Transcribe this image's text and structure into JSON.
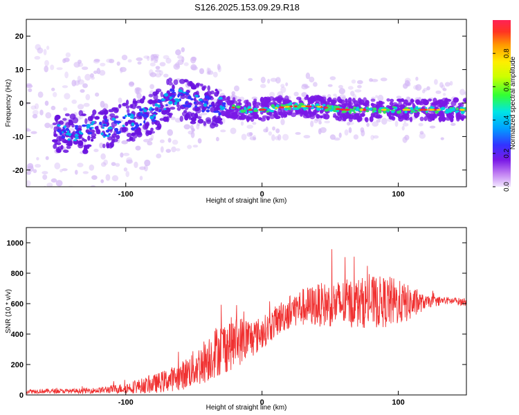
{
  "figure_title": "S126.2025.153.09.29.R18",
  "colors": {
    "spectrogram_purple": "#7a19e6",
    "spectrogram_light": "#d4b8f5",
    "snr_line": "#f03030",
    "frame": "#000000"
  },
  "chart_data": [
    {
      "type": "heatmap",
      "title": "",
      "xlabel": "Height of straight line (km)",
      "ylabel": "Frequency (Hz)",
      "xlim": [
        -173,
        150
      ],
      "ylim": [
        -25,
        25
      ],
      "x_ticks": [
        -100,
        0,
        100
      ],
      "y_ticks": [
        -20,
        -10,
        0,
        10,
        20
      ],
      "grid": false,
      "colorbar": {
        "label": "Normalized spectral amplitude",
        "range": [
          0,
          1
        ],
        "ticks": [
          0.0,
          0.2,
          0.4,
          0.6,
          0.8
        ],
        "colormap": "rainbow (violet-blue-cyan-green-yellow-red)"
      },
      "ridge": {
        "description_points_x": [
          -140,
          -120,
          -100,
          -80,
          -65,
          -50,
          -35,
          -25,
          -15,
          0,
          20,
          40,
          60,
          80,
          100,
          120,
          140,
          150
        ],
        "description_points_y": [
          -9,
          -8,
          -6,
          -3,
          2,
          0,
          -1,
          -1,
          -2,
          -2,
          -1,
          -1,
          -2,
          -2,
          -2,
          -2,
          -2,
          -2
        ]
      }
    },
    {
      "type": "line",
      "title": "",
      "xlabel": "Height of straight line (km)",
      "ylabel": "SNR (10 * v/v)",
      "xlim": [
        -173,
        150
      ],
      "ylim": [
        0,
        1100
      ],
      "x_ticks": [
        -100,
        0,
        100
      ],
      "y_ticks": [
        0,
        200,
        400,
        600,
        800,
        1000
      ],
      "grid": false,
      "series": [
        {
          "envelope_x": [
            -173,
            -140,
            -120,
            -100,
            -80,
            -60,
            -45,
            -35,
            -25,
            -15,
            -5,
            5,
            15,
            25,
            40,
            60,
            80,
            95,
            110,
            120,
            135,
            150
          ],
          "envelope_mean": [
            25,
            25,
            30,
            45,
            70,
            120,
            200,
            280,
            330,
            360,
            380,
            440,
            520,
            570,
            590,
            600,
            610,
            610,
            600,
            610,
            620,
            610
          ],
          "envelope_spread": [
            15,
            15,
            20,
            35,
            60,
            90,
            140,
            170,
            180,
            160,
            120,
            100,
            110,
            120,
            140,
            160,
            170,
            170,
            110,
            40,
            25,
            25
          ]
        }
      ]
    }
  ]
}
